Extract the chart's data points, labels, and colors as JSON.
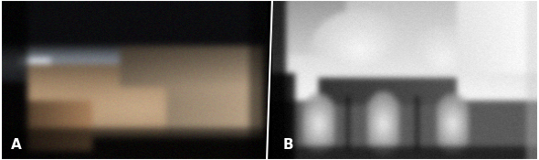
{
  "fig_width": 5.9,
  "fig_height": 1.75,
  "dpi": 100,
  "background_color": "#000000",
  "label_A": "A",
  "label_B": "B",
  "label_color": "#ffffff",
  "label_fontsize": 11,
  "divider_color": "#ffffff",
  "divider_linewidth": 1.5
}
